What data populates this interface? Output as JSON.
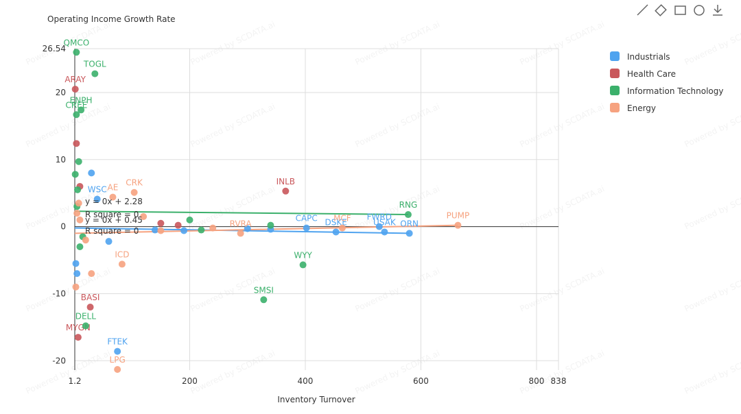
{
  "chart_data": {
    "type": "scatter",
    "x_label": "Inventory Turnover",
    "y_label": "Operating Income Growth Rate",
    "watermark": "Powered by SCDATA.ai",
    "xlim": [
      1.2,
      838
    ],
    "xticks": [
      1.2,
      200,
      400,
      600,
      800,
      838
    ],
    "ylim": [
      -21.4,
      26.54
    ],
    "yticks": [
      26.54,
      20,
      10,
      0,
      -10,
      -20
    ],
    "grid": true,
    "legend": "top-right",
    "series": [
      {
        "name": "Industrials",
        "color": "#4fa3ef",
        "x": [
          40,
          75,
          402,
          453,
          528,
          537,
          580,
          3,
          5,
          30,
          60,
          140,
          190,
          300,
          340
        ],
        "values": [
          4.1,
          -18.6,
          -0.2,
          -0.8,
          0,
          -0.8,
          -1.0,
          -5.5,
          -7.0,
          8.0,
          -2.2,
          -0.5,
          -0.6,
          -0.3,
          -0.4
        ],
        "labels": [
          "WSC",
          "FTEK",
          "CAPC",
          "DSKE",
          "FWRD",
          "USAK",
          "ORN",
          null,
          null,
          null,
          null,
          null,
          null,
          null,
          null
        ],
        "trend": {
          "x": [
            1.2,
            580
          ],
          "values": [
            -0.2,
            -1.0
          ]
        }
      },
      {
        "name": "Health Care",
        "color": "#c9575b",
        "x": [
          2,
          366,
          28,
          7,
          4,
          150,
          180,
          10
        ],
        "values": [
          20.5,
          5.3,
          -12,
          -16.5,
          12.4,
          0.5,
          0.2,
          6.0
        ],
        "labels": [
          "ARAY",
          "INLB",
          "BASI",
          "MYGN",
          null,
          null,
          null,
          null
        ]
      },
      {
        "name": "Information Technology",
        "color": "#3bb06b",
        "x": [
          4,
          36,
          12,
          4,
          8,
          578,
          396,
          328,
          20,
          2,
          6,
          10,
          200,
          220,
          340,
          15,
          5
        ],
        "values": [
          26.0,
          22.8,
          17.4,
          16.7,
          9.7,
          1.8,
          -5.7,
          -10.9,
          -14.8,
          7.8,
          5.5,
          -3.0,
          1.0,
          -0.5,
          0.2,
          -1.5,
          3.0
        ],
        "labels": [
          "QMCO",
          "TOGL",
          "ENPH",
          "CREE",
          null,
          "RNG",
          "WYY",
          "SMSI",
          "DELL",
          null,
          null,
          null,
          null,
          null,
          null,
          null,
          null
        ],
        "trend": {
          "x": [
            1.2,
            578
          ],
          "values": [
            2.3,
            1.8
          ]
        }
      },
      {
        "name": "Energy",
        "color": "#f6a27f",
        "x": [
          104,
          67,
          83,
          75,
          664,
          464,
          288,
          5,
          10,
          20,
          30,
          150,
          240,
          120,
          3,
          8
        ],
        "values": [
          5.1,
          4.4,
          -5.6,
          -21.3,
          0.2,
          -0.2,
          -1.0,
          2.0,
          1.0,
          -2.0,
          -7.0,
          -0.6,
          -0.2,
          1.5,
          -9.0,
          3.5
        ],
        "labels": [
          "CRK",
          "AE",
          "ICD",
          "LPG",
          "PUMP",
          "MCF",
          "RVRA",
          null,
          null,
          null,
          null,
          null,
          null,
          null,
          null,
          null
        ],
        "trend": {
          "x": [
            1.2,
            664
          ],
          "values": [
            -1.0,
            0.2
          ]
        }
      }
    ],
    "annotations": [
      "y = 0x + 2.28",
      "R square = 0",
      "y = 0x + 0.45",
      "R square = 0"
    ]
  }
}
